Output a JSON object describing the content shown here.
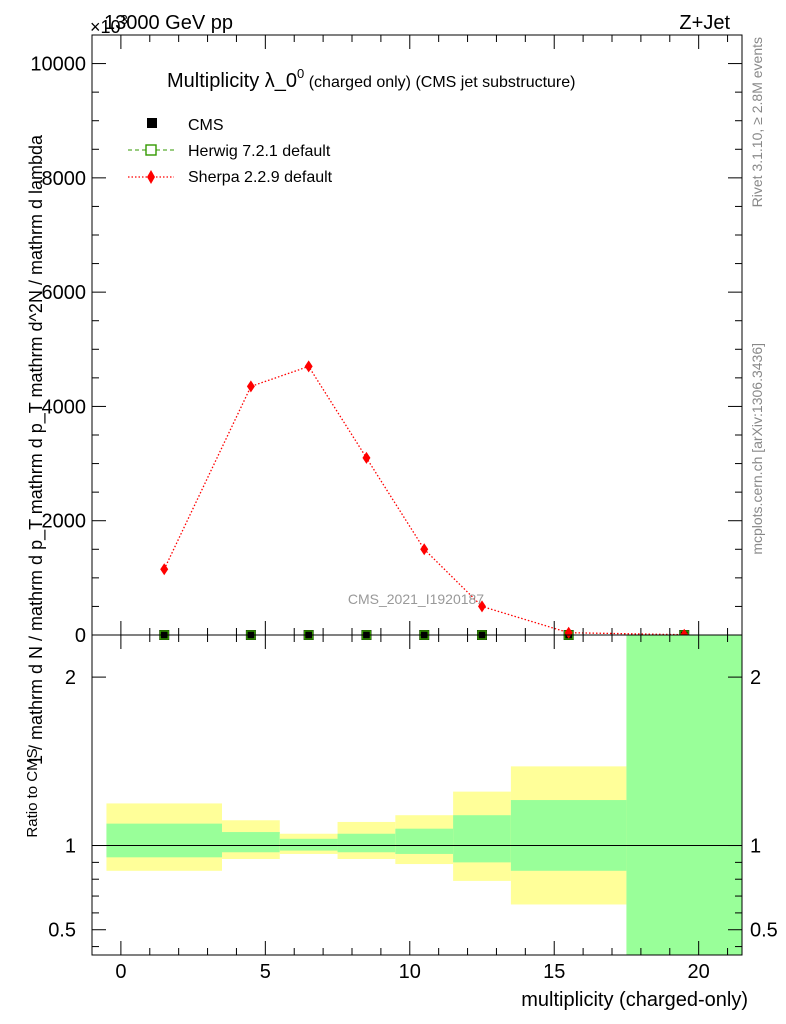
{
  "header": {
    "beam": "13000 GeV pp",
    "process": "Z+Jet",
    "multiplier": "×10",
    "multiplier_exp": "3"
  },
  "side_labels": {
    "rivet": "Rivet 3.1.10, ≥ 2.8M events",
    "mcplots": "mcplots.cern.ch [arXiv:1306.3436]"
  },
  "watermark": "CMS_2021_I1920187",
  "colors": {
    "sherpa": "#ff0000",
    "herwig": "#339900",
    "band_outer": "#ffff99",
    "band_inner": "#99ff99",
    "cms": "#000000"
  },
  "chart_data": [
    {
      "type": "line",
      "title": "Multiplicity λ_0",
      "title_sup": "0",
      "title_suffix": " (charged only) (CMS jet substructure)",
      "ylabel": "1 / mathrm d N / mathrm d p_T mathrm d p_T mathrm d^2N / mathrm d lambda",
      "ylim": [
        0,
        10500
      ],
      "y_ticks": [
        0,
        2000,
        4000,
        6000,
        8000,
        10000
      ],
      "y_tick_labels": [
        "0",
        "2000",
        "4000",
        "6000",
        "8000",
        "10000"
      ],
      "xlim": [
        -1,
        21.5
      ],
      "legend_placement": "top-left",
      "series": [
        {
          "name": "CMS",
          "marker": "square",
          "x": [
            1.5,
            4.5,
            6.5,
            8.5,
            10.5,
            12.5,
            15.5,
            19.5
          ],
          "y": [
            0,
            0,
            0,
            0,
            0,
            0,
            0,
            0
          ]
        },
        {
          "name": "Herwig 7.2.1 default",
          "marker": "open-square",
          "x": [
            1.5,
            4.5,
            6.5,
            8.5,
            10.5,
            12.5,
            15.5,
            19.5
          ],
          "y": [
            0,
            0,
            0,
            0,
            0,
            0,
            0,
            0
          ]
        },
        {
          "name": "Sherpa 2.2.9 default",
          "marker": "diamond",
          "x": [
            1.5,
            4.5,
            6.5,
            8.5,
            10.5,
            12.5,
            15.5,
            19.5
          ],
          "y": [
            1150,
            4350,
            4700,
            3100,
            1500,
            500,
            40,
            5
          ]
        }
      ]
    },
    {
      "type": "area",
      "ylabel": "Ratio to CMS",
      "xlabel": "multiplicity (charged-only)",
      "xlim": [
        -1,
        21.5
      ],
      "ylim": [
        0.35,
        2.25
      ],
      "x_ticks": [
        0,
        5,
        10,
        15,
        20
      ],
      "x_tick_labels": [
        "0",
        "5",
        "10",
        "15",
        "20"
      ],
      "y_ticks": [
        0.5,
        1,
        2
      ],
      "y_tick_labels": [
        "0.5",
        "1",
        "2"
      ],
      "reference_line": 1,
      "bins": [
        {
          "lo": -0.5,
          "hi": 3.5,
          "outer": [
            0.85,
            1.25
          ],
          "inner": [
            0.93,
            1.13
          ]
        },
        {
          "lo": 3.5,
          "hi": 5.5,
          "outer": [
            0.92,
            1.15
          ],
          "inner": [
            0.96,
            1.08
          ]
        },
        {
          "lo": 5.5,
          "hi": 7.5,
          "outer": [
            0.95,
            1.07
          ],
          "inner": [
            0.97,
            1.04
          ]
        },
        {
          "lo": 7.5,
          "hi": 9.5,
          "outer": [
            0.92,
            1.14
          ],
          "inner": [
            0.96,
            1.07
          ]
        },
        {
          "lo": 9.5,
          "hi": 11.5,
          "outer": [
            0.89,
            1.18
          ],
          "inner": [
            0.95,
            1.1
          ]
        },
        {
          "lo": 11.5,
          "hi": 13.5,
          "outer": [
            0.79,
            1.32
          ],
          "inner": [
            0.9,
            1.18
          ]
        },
        {
          "lo": 13.5,
          "hi": 17.5,
          "outer": [
            0.65,
            1.47
          ],
          "inner": [
            0.85,
            1.27
          ]
        },
        {
          "lo": 17.5,
          "hi": 21.5,
          "outer": [
            0.35,
            2.25
          ],
          "inner": [
            0.35,
            2.25
          ]
        }
      ]
    }
  ]
}
